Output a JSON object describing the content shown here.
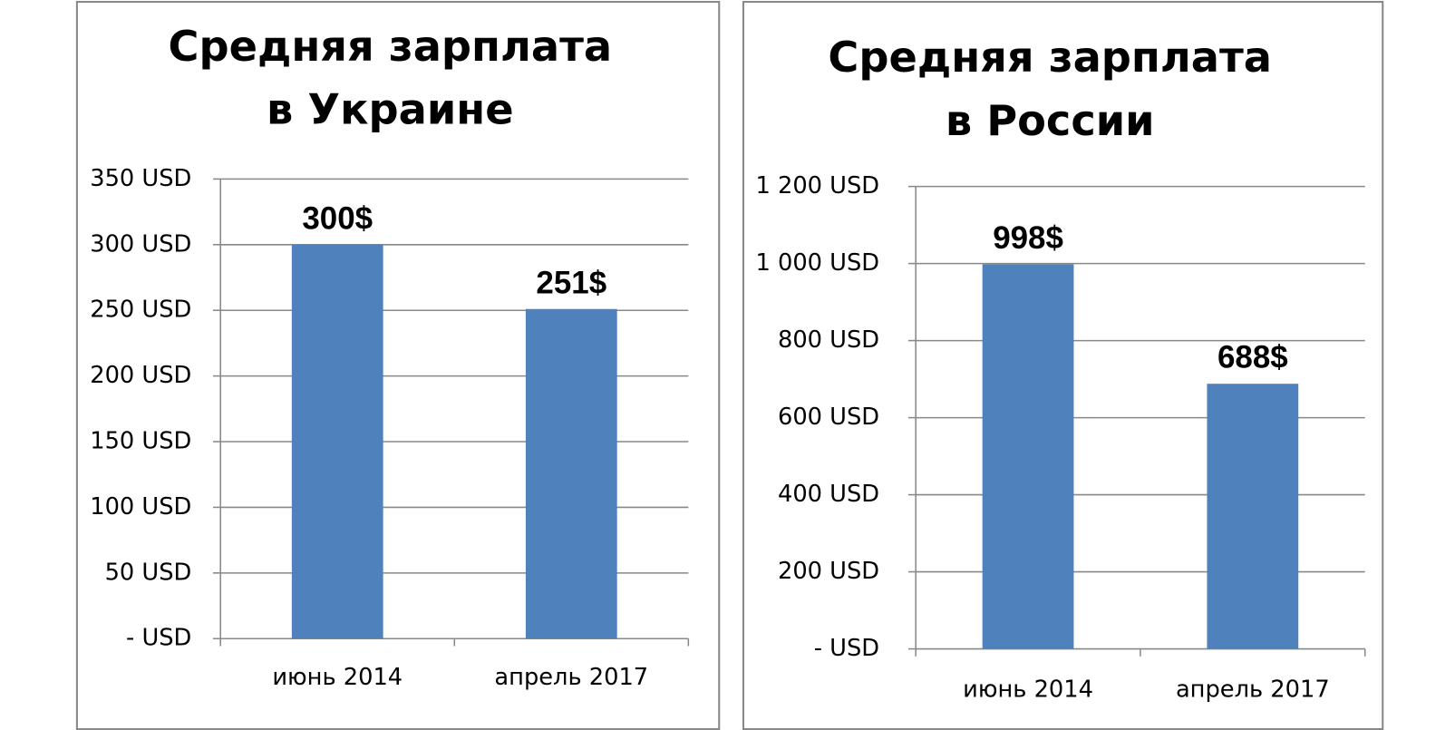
{
  "chart_data": [
    {
      "type": "bar",
      "title": "Средняя зарплата в Украине",
      "categories": [
        "июнь 2014",
        "апрель 2017"
      ],
      "values": [
        300,
        251
      ],
      "value_labels": [
        "300$",
        "251$"
      ],
      "color": "#4f81bd",
      "ylim": [
        0,
        350
      ],
      "yticks": [
        {
          "value": 0,
          "label": "- USD"
        },
        {
          "value": 50,
          "label": "50 USD"
        },
        {
          "value": 100,
          "label": "100 USD"
        },
        {
          "value": 150,
          "label": "150 USD"
        },
        {
          "value": 200,
          "label": "200 USD"
        },
        {
          "value": 250,
          "label": "250 USD"
        },
        {
          "value": 300,
          "label": "300 USD"
        },
        {
          "value": 350,
          "label": "350 USD"
        }
      ],
      "grid": true
    },
    {
      "type": "bar",
      "title": "Средняя зарплата в России",
      "categories": [
        "июнь 2014",
        "апрель 2017"
      ],
      "values": [
        998,
        688
      ],
      "value_labels": [
        "998$",
        "688$"
      ],
      "color": "#4f81bd",
      "ylim": [
        0,
        1200
      ],
      "yticks": [
        {
          "value": 0,
          "label": "- USD"
        },
        {
          "value": 200,
          "label": "200 USD"
        },
        {
          "value": 400,
          "label": "400 USD"
        },
        {
          "value": 600,
          "label": "600 USD"
        },
        {
          "value": 800,
          "label": "800 USD"
        },
        {
          "value": 1000,
          "label": "1 000 USD"
        },
        {
          "value": 1200,
          "label": "1 200 USD"
        }
      ],
      "grid": true
    }
  ]
}
